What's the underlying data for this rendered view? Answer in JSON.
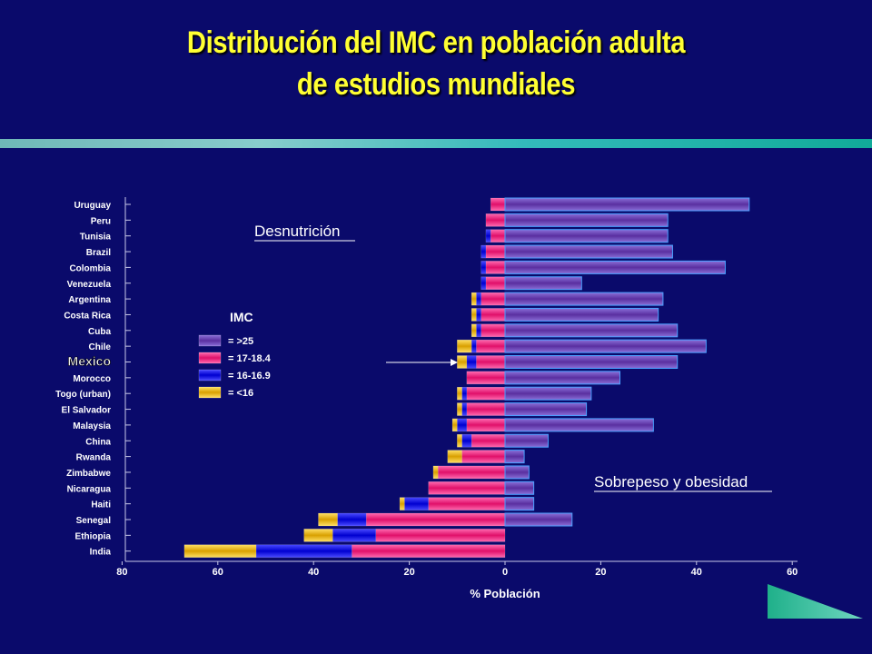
{
  "title": {
    "line1": "Distribución del IMC en población adulta",
    "line2": "de estudios mundiales"
  },
  "chart_data": {
    "type": "bar",
    "orientation": "horizontal-diverging",
    "categories": [
      "Uruguay",
      "Peru",
      "Tunisia",
      "Brazil",
      "Colombia",
      "Venezuela",
      "Argentina",
      "Costa Rica",
      "Cuba",
      "Chile",
      "Mexico",
      "Morocco",
      "Togo (urban)",
      "El Salvador",
      "Malaysia",
      "China",
      "Rwanda",
      "Zimbabwe",
      "Nicaragua",
      "Haiti",
      "Senegal",
      "Ethiopia",
      "India"
    ],
    "highlight_category": "Mexico",
    "left_series": [
      {
        "name": ">25",
        "values": [
          0,
          0,
          0,
          0,
          0,
          0,
          0,
          0,
          0,
          0,
          0,
          0,
          0,
          0,
          0,
          0,
          0,
          0,
          0,
          0,
          0,
          0,
          0
        ],
        "color": "#6a3fb0"
      },
      {
        "name": "17-18.4",
        "values": [
          3,
          4,
          3,
          4,
          4,
          4,
          5,
          5,
          5,
          6,
          6,
          8,
          8,
          8,
          8,
          7,
          9,
          14,
          16,
          16,
          29,
          27,
          32
        ],
        "color": "#ff2a8a"
      },
      {
        "name": "16-16.9",
        "values": [
          0,
          0,
          1,
          1,
          1,
          1,
          1,
          1,
          1,
          1,
          2,
          0,
          1,
          1,
          2,
          2,
          0,
          0,
          0,
          5,
          6,
          9,
          20
        ],
        "color": "#1414ff"
      },
      {
        "name": "<16",
        "values": [
          0,
          0,
          0,
          0,
          0,
          0,
          1,
          1,
          1,
          3,
          2,
          0,
          1,
          1,
          1,
          1,
          3,
          1,
          0,
          1,
          4,
          6,
          15
        ],
        "color": "#ffcc00"
      }
    ],
    "right_series": {
      "name": ">25",
      "values": [
        51,
        34,
        34,
        35,
        46,
        16,
        33,
        32,
        36,
        42,
        36,
        24,
        18,
        17,
        31,
        9,
        4,
        5,
        6,
        6,
        14,
        0,
        0
      ],
      "color": "#7a4fc0"
    },
    "xlabel": "% Población",
    "x_ticks_left": [
      "80",
      "60",
      "40",
      "20"
    ],
    "x_ticks_right": [
      "0",
      "20",
      "40",
      "60"
    ],
    "xlim": [
      -80,
      60
    ],
    "annotations": {
      "left": "Desnutrición",
      "right": "Sobrepeso y obesidad"
    },
    "legend": {
      "title": "IMC",
      "position": "center-left",
      "items": [
        {
          "label": "= >25",
          "color": "#6a3fb0"
        },
        {
          "label": "= 17-18.4",
          "color": "#ff2a8a"
        },
        {
          "label": "= 16-16.9",
          "color": "#1414ff"
        },
        {
          "label": "= <16",
          "color": "#ffcc00"
        }
      ]
    }
  }
}
